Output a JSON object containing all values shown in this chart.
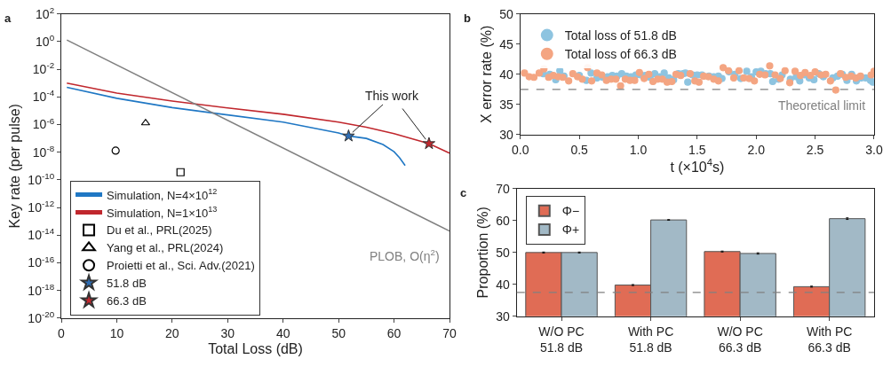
{
  "chart_data": [
    {
      "type": "line",
      "title": "a",
      "xlabel": "Total Loss (dB)",
      "ylabel": "Key rate (per pulse)",
      "log": "y",
      "legend": "bottom left",
      "xlim": [
        0,
        70
      ],
      "xticks": [
        0,
        10,
        20,
        30,
        40,
        50,
        60,
        70
      ],
      "ylim": [
        1e-20,
        100
      ],
      "yticks": [
        {
          "value": 1e-20,
          "label": "10$^{-20}$"
        },
        {
          "value": 1e-18,
          "label": "10$^{-18}$"
        },
        {
          "value": 1e-16,
          "label": "10$^{-16}$"
        },
        {
          "value": 1e-14,
          "label": "10$^{-14}$"
        },
        {
          "value": 1e-12,
          "label": "10$^{-12}$"
        },
        {
          "value": 1e-10,
          "label": "10$^{-10}$"
        },
        {
          "value": 1e-08,
          "label": "10$^{-8}$"
        },
        {
          "value": 1e-06,
          "label": "10$^{-6}$"
        },
        {
          "value": 0.0001,
          "label": "10$^{-4}$"
        },
        {
          "value": 0.01,
          "label": "10$^{-2}$"
        },
        {
          "value": 1,
          "label": "10$^{0}$"
        },
        {
          "value": 100,
          "label": "10$^{2}$"
        }
      ],
      "series": [
        {
          "name": "Simulation, N=4×10$^{12}$",
          "color": "#1f77c4",
          "x": [
            1,
            10,
            20,
            30,
            40,
            50,
            51.8,
            55,
            58,
            60,
            61,
            62
          ],
          "values": [
            0.0005,
            8e-05,
            1.7e-05,
            5e-06,
            1.5e-06,
            2.5e-07,
            1.5e-07,
            1e-07,
            3.6e-08,
            1.1e-08,
            4e-09,
            1.1e-09
          ]
        },
        {
          "name": "Simulation, N=1×10$^{13}$",
          "color": "#c0272d",
          "x": [
            1,
            10,
            20,
            30,
            40,
            50,
            55,
            60,
            66.3,
            70
          ],
          "values": [
            0.001,
            0.00019,
            5e-05,
            1.6e-05,
            5.6e-06,
            1.5e-06,
            6.5e-07,
            2.2e-07,
            4.2e-08,
            8.7e-09
          ]
        },
        {
          "color": "#808080",
          "x": [
            1,
            70
          ],
          "values": [
            1.3,
            2e-14
          ]
        },
        {
          "name": "Du et al., PRL(2025)",
          "type": "scatter",
          "marker": "square",
          "color": "#000000",
          "x": [
            21.5
          ],
          "values": [
            3.6e-10
          ]
        },
        {
          "name": "Yang et al., PRL(2024)",
          "type": "scatter",
          "marker": "triangle",
          "color": "#000000",
          "x": [
            15.2
          ],
          "values": [
            1.3e-06
          ]
        },
        {
          "name": "Proietti et al., Sci. Adv.(2021)",
          "type": "scatter",
          "marker": "circle",
          "color": "#000000",
          "x": [
            9.8
          ],
          "values": [
            1.3e-08
          ]
        },
        {
          "name": "51.8 dB",
          "type": "scatter",
          "marker": "star",
          "color": "#2e6db4",
          "x": [
            51.8
          ],
          "values": [
            1.5e-07
          ]
        },
        {
          "name": "66.3 dB",
          "type": "scatter",
          "marker": "star",
          "color": "#c0272d",
          "x": [
            66.3
          ],
          "values": [
            4.2e-08
          ]
        }
      ],
      "annotations": [
        {
          "text": "This work",
          "x": 51.8,
          "y": 1.5e-07
        },
        "PLOB, O(η$^{2}$)"
      ]
    },
    {
      "type": "scatter",
      "title": "b",
      "xlabel": "t (×10$^{4}$s)",
      "ylabel": "X error rate (%)",
      "legend": "top left",
      "marker": "circle",
      "xlim": [
        0,
        3
      ],
      "xticks": [
        {
          "value": 0,
          "label": "0.0"
        },
        {
          "value": 0.5,
          "label": "0.5"
        },
        {
          "value": 1,
          "label": "1.0"
        },
        {
          "value": 1.5,
          "label": "1.5"
        },
        {
          "value": 2,
          "label": "2.0"
        },
        {
          "value": 2.5,
          "label": "2.5"
        },
        {
          "value": 3,
          "label": "3.0"
        }
      ],
      "ylim": [
        30,
        50
      ],
      "yticks": [
        30,
        35,
        40,
        45,
        50
      ],
      "series": [
        {
          "name": "Total loss of 51.8 dB",
          "color": "#8ec4e0",
          "x": [
            0.195,
            0.25,
            0.3,
            0.335,
            0.37,
            0.5,
            0.56,
            0.6,
            0.65,
            0.7,
            0.74,
            0.78,
            0.82,
            0.86,
            0.9,
            0.94,
            0.98,
            1.02,
            1.06,
            1.1,
            1.14,
            1.18,
            1.22,
            1.26,
            1.3,
            1.34,
            1.38,
            1.4,
            1.42,
            1.46,
            1.5,
            1.54,
            1.6,
            1.64,
            1.68,
            1.71,
            1.77,
            1.82,
            1.87,
            1.92,
            1.96,
            2.0,
            2.04,
            2.08,
            2.12,
            2.14,
            2.19,
            2.22,
            2.29,
            2.34,
            2.37,
            2.41,
            2.45,
            2.49,
            2.53,
            2.57,
            2.65,
            2.69,
            2.73,
            2.77,
            2.81,
            2.85,
            2.89,
            2.93,
            2.97,
            2.99
          ],
          "values": [
            40.1,
            40.0,
            39.1,
            40.6,
            39.7,
            39.8,
            39.0,
            40.2,
            39.4,
            39.5,
            39.6,
            39.8,
            39.7,
            40.1,
            39.7,
            39.6,
            39.9,
            39.9,
            39.8,
            39.5,
            40.1,
            39.6,
            40.2,
            39.4,
            39.1,
            40.1,
            40.1,
            40.2,
            38.7,
            39.9,
            39.9,
            39.9,
            39.7,
            39.6,
            39.7,
            39.3,
            40.4,
            40.0,
            39.3,
            40.5,
            39.6,
            40.4,
            40.5,
            40.1,
            40.1,
            38.8,
            39.2,
            39.9,
            39.2,
            39.6,
            38.9,
            39.9,
            39.4,
            39.1,
            40.1,
            39.6,
            39.4,
            39.7,
            40.0,
            39.0,
            40.0,
            38.9,
            39.4,
            39.4,
            39.0,
            38.7
          ]
        },
        {
          "name": "Total loss of 66.3 dB",
          "color": "#f4a582",
          "x": [
            0.035,
            0.075,
            0.115,
            0.16,
            0.2,
            0.24,
            0.28,
            0.32,
            0.36,
            0.41,
            0.445,
            0.485,
            0.525,
            0.57,
            0.605,
            0.65,
            0.69,
            0.73,
            0.77,
            0.81,
            0.85,
            0.89,
            0.93,
            0.97,
            1.01,
            1.05,
            1.09,
            1.125,
            1.165,
            1.205,
            1.245,
            1.285,
            1.32,
            1.36,
            1.44,
            1.48,
            1.515,
            1.555,
            1.595,
            1.64,
            1.68,
            1.72,
            1.765,
            1.81,
            1.855,
            1.895,
            1.94,
            1.985,
            2.03,
            2.075,
            2.115,
            2.16,
            2.205,
            2.245,
            2.285,
            2.33,
            2.375,
            2.415,
            2.46,
            2.5,
            2.55,
            2.59,
            2.63,
            2.675,
            2.715,
            2.76,
            2.805,
            2.845,
            2.885,
            2.975,
            3.0
          ],
          "values": [
            40.2,
            39.6,
            39.5,
            40.2,
            40.9,
            39.5,
            39.8,
            39.6,
            39.5,
            38.9,
            40.1,
            39.6,
            39.2,
            41.1,
            38.9,
            40.2,
            39.9,
            39.0,
            39.2,
            39.2,
            38.1,
            39.2,
            39.0,
            39.0,
            40.3,
            39.3,
            40.0,
            38.8,
            39.2,
            39.2,
            38.7,
            38.8,
            40.0,
            39.8,
            40.1,
            38.9,
            38.7,
            39.7,
            39.6,
            39.2,
            38.9,
            41.1,
            40.6,
            39.4,
            40.6,
            39.4,
            39.3,
            38.9,
            40.0,
            39.9,
            41.4,
            39.9,
            39.3,
            40.6,
            38.6,
            40.5,
            39.8,
            40.3,
            39.8,
            40.4,
            39.9,
            40.0,
            38.9,
            37.4,
            40.1,
            39.5,
            39.7,
            39.4,
            39.7,
            39.9,
            40.5
          ]
        }
      ],
      "ref_lines": [
        {
          "axis": "y",
          "value": 37.5,
          "label": "Theoretical limit",
          "color": "#808080",
          "line_style": "dashed"
        }
      ]
    },
    {
      "type": "bar",
      "title": "c",
      "ylabel": "Proportion (%)",
      "legend": "top left",
      "categories": [
        "W/O PC\n51.8 dB",
        "With PC\n51.8 dB",
        "W/O PC\n66.3 dB",
        "With PC\n66.3 dB"
      ],
      "ylim": [
        30,
        70
      ],
      "yticks": [
        30,
        40,
        50,
        60,
        70
      ],
      "series": [
        {
          "name": "Φ−",
          "color": "#e06c55",
          "values": [
            50.0,
            39.8,
            50.3,
            39.3
          ],
          "errors": [
            0.15,
            0.15,
            0.15,
            0.15
          ]
        },
        {
          "name": "Φ+",
          "color": "#a2b9c6",
          "values": [
            50.0,
            60.2,
            49.7,
            60.6
          ],
          "errors": [
            0.15,
            0.1,
            0.2,
            0.25
          ]
        }
      ],
      "ref_lines": [
        {
          "axis": "y",
          "value": 37.5,
          "color": "#808080",
          "line_style": "dashed"
        }
      ]
    }
  ]
}
